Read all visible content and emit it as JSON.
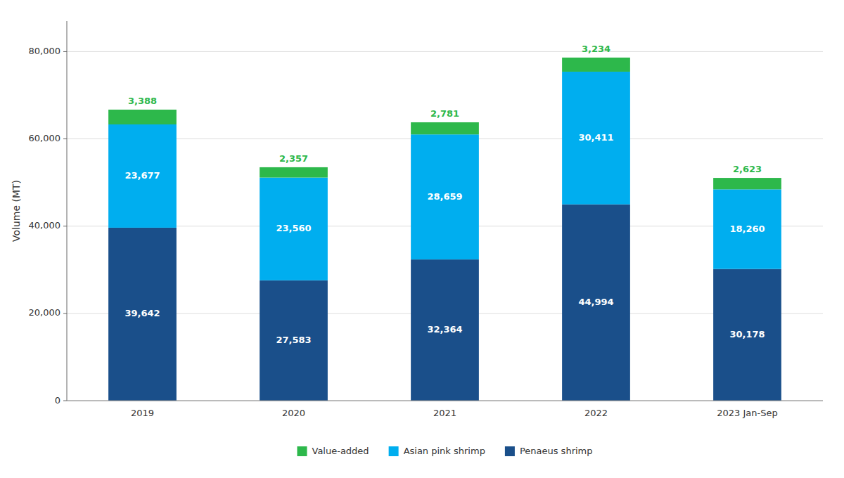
{
  "chart_data": {
    "type": "bar",
    "stacked": true,
    "categories": [
      "2019",
      "2020",
      "2021",
      "2022",
      "2023 Jan-Sep"
    ],
    "series": [
      {
        "name": "Penaeus shrimp",
        "color": "#1a4f8a",
        "values": [
          39642,
          27583,
          32364,
          44994,
          30178
        ],
        "value_labels": [
          "39,642",
          "27,583",
          "32,364",
          "44,994",
          "30,178"
        ]
      },
      {
        "name": "Asian pink shrimp",
        "color": "#00aeef",
        "values": [
          23677,
          23560,
          28659,
          30411,
          18260
        ],
        "value_labels": [
          "23,677",
          "23,560",
          "28,659",
          "30,411",
          "18,260"
        ]
      },
      {
        "name": "Value-added",
        "color": "#2db84b",
        "values": [
          3388,
          2357,
          2781,
          3234,
          2623
        ],
        "value_labels": [
          "3,388",
          "2,357",
          "2,781",
          "3,234",
          "2,623"
        ]
      }
    ],
    "ylabel": "Volume (MT)",
    "ylim": [
      0,
      87000
    ],
    "yticks": [
      0,
      {
        "value": 20000,
        "label": "20,000"
      },
      {
        "value": 40000,
        "label": "40,000"
      },
      {
        "value": 60000,
        "label": "60,000"
      },
      {
        "value": 80000,
        "label": "80,000"
      }
    ],
    "grid": true,
    "legend": "bottom",
    "data_labels": true
  }
}
